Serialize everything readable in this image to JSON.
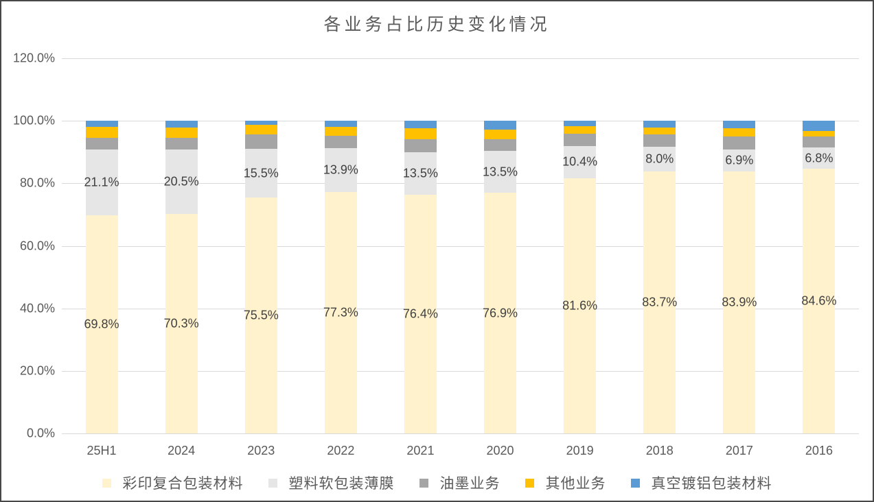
{
  "chart_data": {
    "type": "bar",
    "stacked": true,
    "title": "各业务占比历史变化情况",
    "categories": [
      "25H1",
      "2024",
      "2023",
      "2022",
      "2021",
      "2020",
      "2019",
      "2018",
      "2017",
      "2016"
    ],
    "series": [
      {
        "name": "彩印复合包装材料",
        "color": "#FFF2CC",
        "values": [
          69.8,
          70.3,
          75.5,
          77.3,
          76.4,
          76.9,
          81.6,
          83.7,
          83.9,
          84.6
        ],
        "data_labels": [
          "69.8%",
          "70.3%",
          "75.5%",
          "77.3%",
          "76.4%",
          "76.9%",
          "81.6%",
          "83.7%",
          "83.9%",
          "84.6%"
        ]
      },
      {
        "name": "塑料软包装薄膜",
        "color": "#E7E6E6",
        "values": [
          21.1,
          20.5,
          15.5,
          13.9,
          13.5,
          13.5,
          10.4,
          8.0,
          6.9,
          6.8
        ],
        "data_labels": [
          "21.1%",
          "20.5%",
          "15.5%",
          "13.9%",
          "13.5%",
          "13.5%",
          "10.4%",
          "8.0%",
          "6.9%",
          "6.8%"
        ]
      },
      {
        "name": "油墨业务",
        "color": "#A5A5A5",
        "values": [
          3.6,
          3.7,
          4.6,
          4.0,
          4.2,
          3.8,
          3.8,
          4.0,
          4.1,
          3.5
        ],
        "data_labels": null
      },
      {
        "name": "其他业务",
        "color": "#FFC000",
        "values": [
          3.5,
          3.4,
          3.1,
          2.9,
          3.5,
          3.0,
          2.4,
          2.2,
          2.7,
          1.8
        ],
        "data_labels": null
      },
      {
        "name": "真空镀铝包装材料",
        "color": "#5B9BD5",
        "values": [
          2.0,
          2.1,
          1.3,
          1.9,
          2.4,
          2.8,
          1.8,
          2.1,
          2.4,
          3.3
        ],
        "data_labels": null
      }
    ],
    "ylim": [
      0,
      120
    ],
    "yticks": [
      {
        "value": 0,
        "label": "0.0%"
      },
      {
        "value": 20,
        "label": "20.0%"
      },
      {
        "value": 40,
        "label": "40.0%"
      },
      {
        "value": 60,
        "label": "60.0%"
      },
      {
        "value": 80,
        "label": "80.0%"
      },
      {
        "value": 100,
        "label": "100.0%"
      },
      {
        "value": 120,
        "label": "120.0%"
      }
    ],
    "grid": true,
    "legend_position": "bottom",
    "colors": {
      "gridline": "#D9D9D9",
      "axis_text": "#595959",
      "title_text": "#595959",
      "data_label_text": "#404040"
    }
  }
}
